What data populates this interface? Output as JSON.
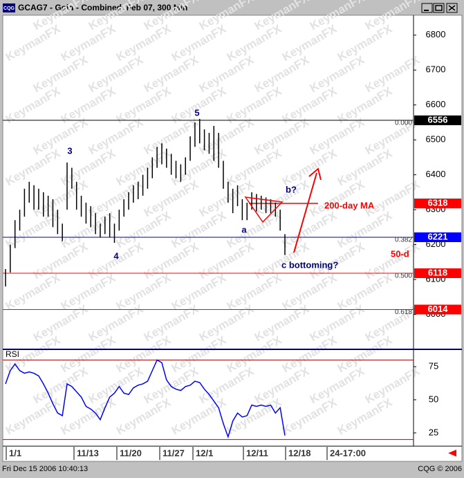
{
  "chart_data": {
    "type": "hl",
    "title": "GCAG7 - Gold - Combined, Feb 07, 300 Min",
    "app_icon": "CQG",
    "watermark": "KeymanFX",
    "color": "#000000",
    "ylim": [
      5900,
      6857
    ],
    "yticks": [
      6000,
      6100,
      6200,
      6300,
      6400,
      6500,
      6600,
      6700,
      6800
    ],
    "high": [
      6130,
      6200,
      6270,
      6300,
      6360,
      6380,
      6370,
      6360,
      6350,
      6340,
      6330,
      6300,
      6260,
      6435,
      6420,
      6380,
      6340,
      6320,
      6310,
      6290,
      6260,
      6280,
      6290,
      6260,
      6300,
      6330,
      6350,
      6370,
      6380,
      6400,
      6420,
      6450,
      6480,
      6490,
      6475,
      6460,
      6440,
      6430,
      6450,
      6510,
      6550,
      6560,
      6530,
      6520,
      6540,
      6520,
      6440,
      6380,
      6360,
      6370,
      6330,
      6320,
      6350,
      6345,
      6340,
      6335,
      6330,
      6320,
      6300,
      6230
    ],
    "low": [
      6080,
      6120,
      6190,
      6240,
      6280,
      6320,
      6300,
      6300,
      6280,
      6280,
      6250,
      6230,
      6210,
      6300,
      6360,
      6300,
      6280,
      6260,
      6250,
      6230,
      6220,
      6230,
      6220,
      6205,
      6240,
      6280,
      6300,
      6320,
      6330,
      6340,
      6360,
      6390,
      6420,
      6430,
      6420,
      6400,
      6390,
      6380,
      6400,
      6440,
      6480,
      6490,
      6470,
      6460,
      6440,
      6420,
      6360,
      6320,
      6290,
      6310,
      6270,
      6270,
      6300,
      6295,
      6300,
      6290,
      6290,
      6280,
      6240,
      6170
    ],
    "fib_levels": [
      {
        "label": "0.000",
        "value": 6556,
        "color": "#000000"
      },
      {
        "label": "0.382",
        "value": 6221,
        "color": "#00008b"
      },
      {
        "label": "0.500",
        "value": 6118,
        "color": "#ff0000"
      },
      {
        "label": "0.618",
        "value": 6014,
        "color": "#ff0000"
      }
    ],
    "price_markers": [
      {
        "value": 6556,
        "color": "#000000"
      },
      {
        "value": 6318,
        "color": "#ff0000"
      },
      {
        "value": 6221,
        "color": "#0000ff"
      },
      {
        "value": 6118,
        "color": "#ff0000"
      },
      {
        "value": 6014,
        "color": "#ff0000"
      }
    ],
    "ma_value": 6318,
    "annotations": [
      "5",
      "3",
      "4",
      "a",
      "b?",
      "c bottoming?",
      "200-day MA",
      "50-d"
    ],
    "rsi": {
      "name": "RSI",
      "color": "#0000ff",
      "ylim": [
        15,
        87
      ],
      "yticks": [
        25,
        50,
        75
      ],
      "levels": [
        80,
        20
      ],
      "values": [
        62,
        72,
        77,
        72,
        70,
        71,
        70,
        68,
        62,
        55,
        47,
        40,
        38,
        62,
        60,
        56,
        52,
        45,
        43,
        40,
        35,
        44,
        52,
        55,
        60,
        55,
        54,
        59,
        61,
        62,
        64,
        72,
        80,
        78,
        65,
        60,
        58,
        57,
        60,
        61,
        64,
        63,
        58,
        54,
        49,
        44,
        32,
        22,
        34,
        40,
        37,
        38,
        46,
        45,
        46,
        45,
        46,
        40,
        44,
        23
      ]
    },
    "x_labels": [
      "1/1",
      "11/13",
      "11/20",
      "11/27",
      "12/1",
      "12/11",
      "12/18",
      "24-17:00"
    ],
    "status_left": "Fri Dec 15 2006 10:40:13",
    "status_right": "CQG © 2006"
  }
}
